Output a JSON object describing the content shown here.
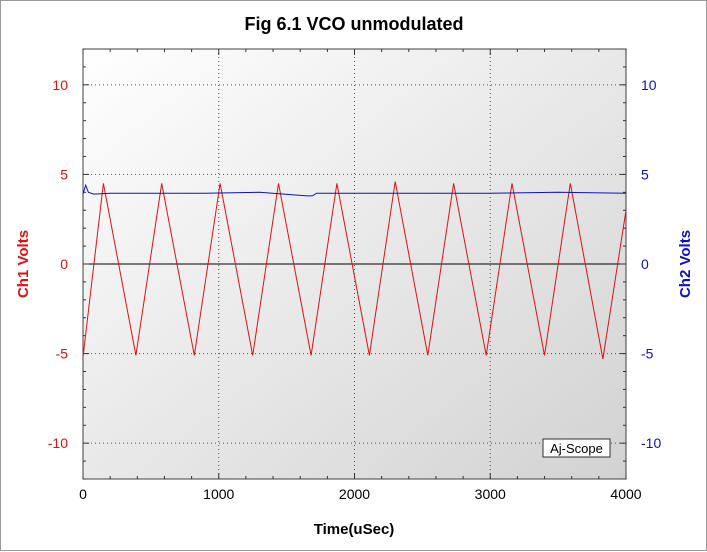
{
  "chart_data": {
    "type": "line",
    "title": "Fig 6.1 VCO unmodulated",
    "xlabel": "Time(uSec)",
    "ylabel_left": "Ch1 Volts",
    "ylabel_right": "Ch2 Volts",
    "xlim": [
      0,
      4000
    ],
    "ylim": [
      -12,
      12
    ],
    "x_ticks": [
      0,
      1000,
      2000,
      3000,
      4000
    ],
    "y_ticks": [
      10,
      5,
      0,
      -5,
      -10
    ],
    "grid": true,
    "watermark": "Aj-Scope",
    "series": [
      {
        "name": "",
        "axis": "left",
        "color": "#e01010",
        "x": [
          0,
          150,
          390,
          580,
          820,
          1010,
          1250,
          1440,
          1680,
          1870,
          2110,
          2300,
          2540,
          2730,
          2970,
          3160,
          3400,
          3590,
          3830,
          4000
        ],
        "y": [
          -5.2,
          4.5,
          -5.1,
          4.5,
          -5.1,
          4.5,
          -5.1,
          4.5,
          -5.1,
          4.5,
          -5.1,
          4.6,
          -5.1,
          4.5,
          -5.1,
          4.5,
          -5.1,
          4.5,
          -5.3,
          3.0
        ]
      },
      {
        "name": "",
        "axis": "right",
        "color": "#1010c0",
        "x": [
          0,
          20,
          40,
          80,
          200,
          500,
          900,
          1300,
          1650,
          1690,
          1720,
          2000,
          2500,
          3000,
          3500,
          4000
        ],
        "y": [
          3.9,
          4.4,
          4.0,
          3.9,
          3.95,
          3.95,
          3.95,
          4.0,
          3.8,
          3.8,
          3.95,
          3.95,
          3.95,
          3.95,
          4.0,
          3.95
        ]
      }
    ]
  }
}
